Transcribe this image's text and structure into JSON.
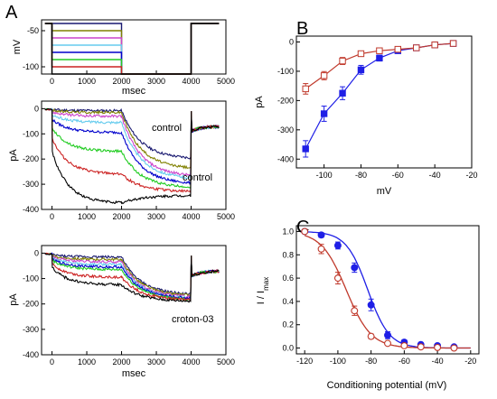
{
  "panels": {
    "a": "A",
    "b": "B",
    "c": "C"
  },
  "chart_data": [
    {
      "id": "a_protocol",
      "type": "line",
      "xlabel": "msec",
      "ylabel": "mV",
      "xlim": [
        -300,
        5000
      ],
      "ylim": [
        -110,
        -35
      ],
      "xticks": [
        0,
        1000,
        2000,
        3000,
        4000,
        5000
      ],
      "yticks": [
        -50,
        -100
      ],
      "holding_mV": -40,
      "step_end_ms": 2000,
      "test_until_ms": 4000,
      "test_mV": -110,
      "end_ms": 4800,
      "series": [
        {
          "level_mV": -40,
          "color": "#191970"
        },
        {
          "level_mV": -50,
          "color": "#808000"
        },
        {
          "level_mV": -60,
          "color": "#cc44cc"
        },
        {
          "level_mV": -70,
          "color": "#66ccee"
        },
        {
          "level_mV": -80,
          "color": "#0000cc"
        },
        {
          "level_mV": -90,
          "color": "#22cc22"
        },
        {
          "level_mV": -100,
          "color": "#cc2222"
        },
        {
          "level_mV": -110,
          "color": "#000000"
        }
      ]
    },
    {
      "id": "a_control",
      "type": "line",
      "xlabel": "msec",
      "ylabel": "pA",
      "xlim": [
        -300,
        5000
      ],
      "ylim": [
        -400,
        30
      ],
      "xticks": [
        0,
        1000,
        2000,
        3000,
        4000,
        5000
      ],
      "yticks": [
        0,
        -100,
        -200,
        -300,
        -400
      ],
      "annotations": [
        "control",
        "control"
      ],
      "series": [
        {
          "color": "#191970",
          "peak": -8,
          "tail": -200
        },
        {
          "color": "#808000",
          "peak": -15,
          "tail": -240
        },
        {
          "color": "#cc44cc",
          "peak": -30,
          "tail": -270
        },
        {
          "color": "#66ccee",
          "peak": -55,
          "tail": -280
        },
        {
          "color": "#0000cc",
          "peak": -95,
          "tail": -300
        },
        {
          "color": "#22cc22",
          "peak": -170,
          "tail": -315
        },
        {
          "color": "#cc2222",
          "peak": -260,
          "tail": -330
        },
        {
          "color": "#000000",
          "peak": -375,
          "tail": -345
        }
      ]
    },
    {
      "id": "a_croton",
      "type": "line",
      "xlabel": "msec",
      "ylabel": "pA",
      "xlim": [
        -300,
        5000
      ],
      "ylim": [
        -400,
        30
      ],
      "xticks": [
        0,
        1000,
        2000,
        3000,
        4000,
        5000
      ],
      "yticks": [
        0,
        -100,
        -200,
        -300,
        -400
      ],
      "annotations": [
        "croton-03"
      ],
      "series": [
        {
          "color": "#191970",
          "peak": -15,
          "tail": -165
        },
        {
          "color": "#808000",
          "peak": -25,
          "tail": -170
        },
        {
          "color": "#cc44cc",
          "peak": -35,
          "tail": -175
        },
        {
          "color": "#66ccee",
          "peak": -45,
          "tail": -180
        },
        {
          "color": "#0000cc",
          "peak": -55,
          "tail": -180
        },
        {
          "color": "#22cc22",
          "peak": -65,
          "tail": -185
        },
        {
          "color": "#cc2222",
          "peak": -95,
          "tail": -185
        },
        {
          "color": "#000000",
          "peak": -125,
          "tail": -190
        }
      ]
    },
    {
      "id": "b",
      "type": "line",
      "xlabel": "mV",
      "ylabel": "pA",
      "xlim": [
        -115,
        -20
      ],
      "ylim": [
        -430,
        20
      ],
      "xticks": [
        -100,
        -80,
        -60,
        -40,
        -20
      ],
      "yticks": [
        0,
        -100,
        -200,
        -300,
        -400
      ],
      "series": [
        {
          "color": "#1f1fe6",
          "marker": "filled-square",
          "x": [
            -110,
            -100,
            -90,
            -80,
            -70,
            -60,
            -50,
            -40,
            -30
          ],
          "y": [
            -365,
            -245,
            -175,
            -95,
            -55,
            -30,
            -20,
            -10,
            -5
          ],
          "err": [
            28,
            26,
            22,
            15,
            10,
            8,
            6,
            5,
            4
          ]
        },
        {
          "color": "#c0392b",
          "marker": "open-square",
          "x": [
            -110,
            -100,
            -90,
            -80,
            -70,
            -60,
            -50,
            -40,
            -30
          ],
          "y": [
            -160,
            -115,
            -65,
            -40,
            -30,
            -25,
            -20,
            -10,
            -5
          ],
          "err": [
            18,
            14,
            12,
            8,
            6,
            5,
            4,
            4,
            3
          ]
        }
      ]
    },
    {
      "id": "c",
      "type": "line",
      "xlabel": "Conditioning potential (mV)",
      "ylabel": "I / I",
      "ylabel_sub": "max",
      "xlim": [
        -125,
        -15
      ],
      "ylim": [
        -0.05,
        1.05
      ],
      "xticks": [
        -120,
        -100,
        -80,
        -60,
        -40,
        -20
      ],
      "yticks": [
        0.0,
        0.2,
        0.4,
        0.6,
        0.8,
        1.0
      ],
      "ytick_labels": [
        "0.0",
        "0.2",
        "0.4",
        "0.6",
        "0.8",
        "1.0"
      ],
      "series": [
        {
          "color": "#1f1fe6",
          "marker": "filled-circle",
          "x": [
            -120,
            -110,
            -100,
            -90,
            -80,
            -70,
            -60,
            -50,
            -40,
            -30
          ],
          "y": [
            1.0,
            0.97,
            0.88,
            0.69,
            0.37,
            0.11,
            0.05,
            0.03,
            0.02,
            0.01
          ],
          "err": [
            0.01,
            0.02,
            0.03,
            0.04,
            0.05,
            0.03,
            0.02,
            0.01,
            0.01,
            0.01
          ],
          "fit_v50": -82,
          "fit_k": 6.5
        },
        {
          "color": "#c0392b",
          "marker": "open-circle",
          "x": [
            -120,
            -110,
            -100,
            -90,
            -80,
            -70,
            -60,
            -50,
            -40,
            -30
          ],
          "y": [
            1.0,
            0.85,
            0.6,
            0.32,
            0.1,
            0.04,
            0.02,
            0.01,
            0.005,
            0.0
          ],
          "err": [
            0.01,
            0.04,
            0.05,
            0.04,
            0.02,
            0.01,
            0.01,
            0.005,
            0.005,
            0.0
          ],
          "fit_v50": -95,
          "fit_k": 7.5
        }
      ]
    }
  ]
}
